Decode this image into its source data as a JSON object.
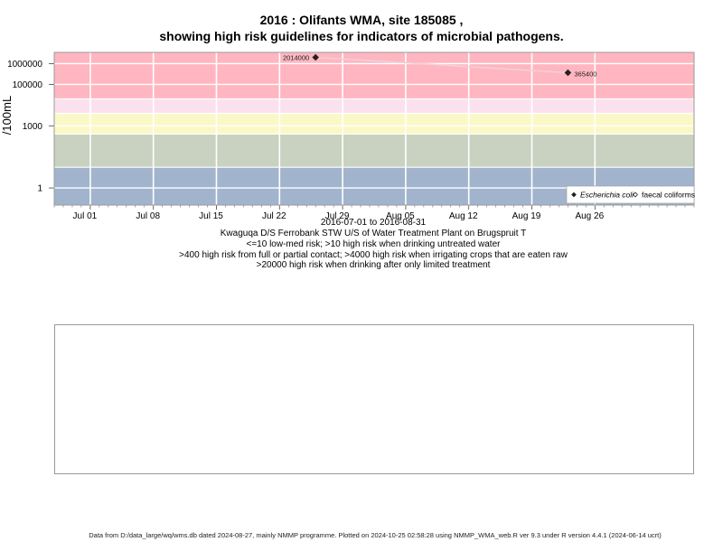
{
  "title_line1": "2016 : Olifants WMA, site 185085 ,",
  "title_line2": "showing high risk guidelines for indicators of microbial pathogens.",
  "date_range": "2016-07-01 to 2016-08-31",
  "site_description": "Kwaguqa D/S Ferrobank STW U/S of Water Treatment Plant on Brugspruit T",
  "guideline_lines": [
    "<=10 low-med risk; >10 high risk when drinking untreated water",
    ">400 high risk from full or partial contact; >4000 high risk when irrigating crops that are eaten raw",
    ">20000 high risk when drinking after only limited treatment"
  ],
  "footer": "Data from D:/data_large/wq/wms.db dated 2024-08-27, mainly NMMP programme. Plotted on 2024-10-25 02:58:28 using NMMP_WMA_web.R ver 9.3 under R version 4.4.1 (2024-06-14 ucrt)",
  "colors": {
    "band_high": "#ffb6c1",
    "band_pink_light": "#fbe1ee",
    "band_yellow": "#fbf8c7",
    "band_green": "#c9d2c0",
    "band_blue": "#a2b4cd",
    "series_line": "#eed2d6",
    "marker": "#222222"
  },
  "chart_data": {
    "type": "scatter",
    "ylabel": "/100mL",
    "y_scale": "log",
    "x_range": [
      "2016-06-27",
      "2016-09-06"
    ],
    "y_range": [
      0.15,
      3500000
    ],
    "x_ticks": [
      {
        "date": "2016-07-01",
        "label": "Jul 01"
      },
      {
        "date": "2016-07-08",
        "label": "Jul 08"
      },
      {
        "date": "2016-07-15",
        "label": "Jul 15"
      },
      {
        "date": "2016-07-22",
        "label": "Jul 22"
      },
      {
        "date": "2016-07-29",
        "label": "Jul 29"
      },
      {
        "date": "2016-08-05",
        "label": "Aug 05"
      },
      {
        "date": "2016-08-12",
        "label": "Aug 12"
      },
      {
        "date": "2016-08-19",
        "label": "Aug 19"
      },
      {
        "date": "2016-08-26",
        "label": "Aug 26"
      }
    ],
    "y_ticks": [
      {
        "value": 1,
        "label": "1"
      },
      {
        "value": 1000,
        "label": "1000"
      },
      {
        "value": 100000,
        "label": "100000"
      },
      {
        "value": 1000000,
        "label": "1000000"
      }
    ],
    "grid": true,
    "legend_position": "bottom-right",
    "guideline_bands": [
      {
        "from": 0.15,
        "to": 10,
        "color": "band_blue"
      },
      {
        "from": 10,
        "to": 400,
        "color": "band_green"
      },
      {
        "from": 400,
        "to": 4000,
        "color": "band_yellow"
      },
      {
        "from": 4000,
        "to": 20000,
        "color": "band_pink_light"
      },
      {
        "from": 20000,
        "to": 3500000,
        "color": "band_high"
      }
    ],
    "series": [
      {
        "name": "Escherichia coli",
        "marker": "filled-diamond",
        "points": [
          {
            "x": "2016-07-26",
            "y": 2014000,
            "label": "2014000"
          },
          {
            "x": "2016-08-23",
            "y": 365400,
            "label": "365400"
          }
        ]
      },
      {
        "name": "faecal coliforms",
        "marker": "open-diamond",
        "points": []
      }
    ]
  }
}
